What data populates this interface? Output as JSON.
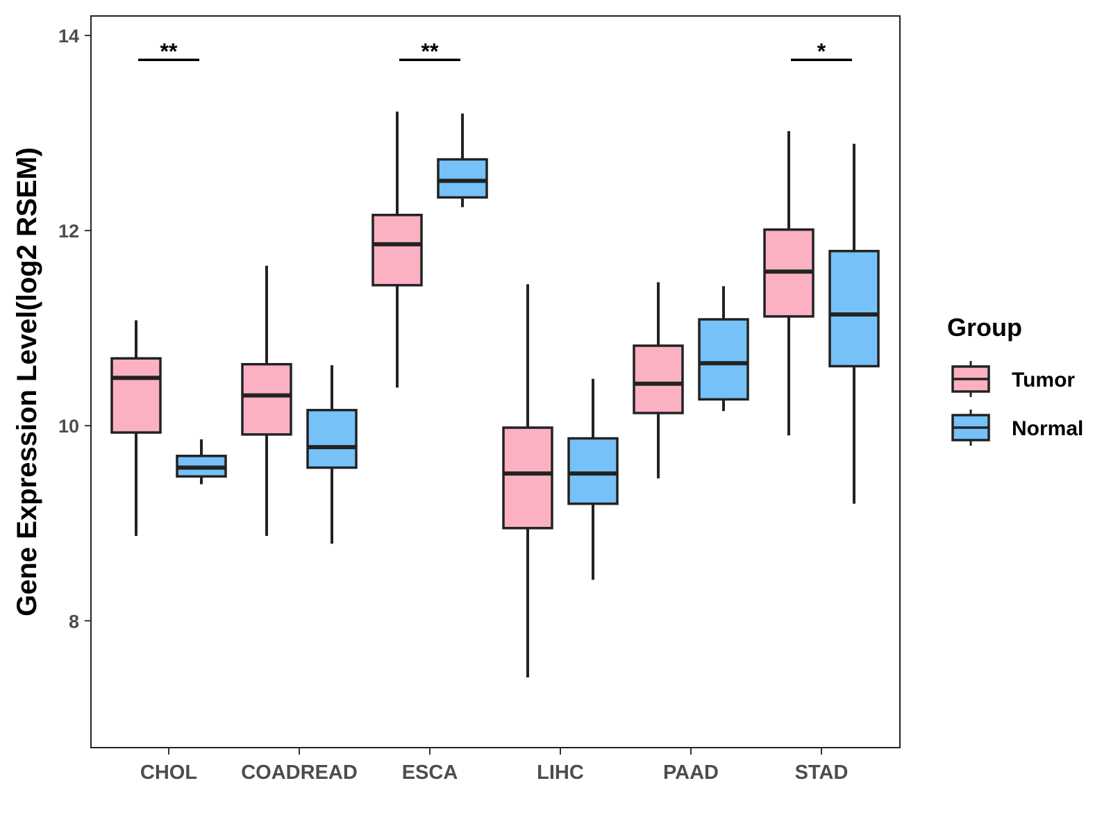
{
  "chart_data": {
    "type": "boxplot",
    "title": "",
    "xlabel": "",
    "ylabel": "Gene Expression Level(log2 RSEM)",
    "ylim": [
      6.7,
      14.2
    ],
    "yticks": [
      8,
      10,
      12,
      14
    ],
    "categories": [
      "CHOL",
      "COADREAD",
      "ESCA",
      "LIHC",
      "PAAD",
      "STAD"
    ],
    "legend": {
      "title": "Group",
      "position": "right",
      "entries": [
        "Tumor",
        "Normal"
      ]
    },
    "series": [
      {
        "name": "Tumor",
        "color": "#FBB1C2",
        "boxes": [
          {
            "whisker_low": 8.87,
            "q1": 9.93,
            "median": 10.49,
            "q3": 10.69,
            "whisker_high": 11.08
          },
          {
            "whisker_low": 8.87,
            "q1": 9.91,
            "median": 10.31,
            "q3": 10.63,
            "whisker_high": 11.64
          },
          {
            "whisker_low": 10.39,
            "q1": 11.44,
            "median": 11.86,
            "q3": 12.16,
            "whisker_high": 13.22
          },
          {
            "whisker_low": 7.42,
            "q1": 8.95,
            "median": 9.51,
            "q3": 9.98,
            "whisker_high": 11.45
          },
          {
            "whisker_low": 9.46,
            "q1": 10.13,
            "median": 10.43,
            "q3": 10.82,
            "whisker_high": 11.47
          },
          {
            "whisker_low": 9.9,
            "q1": 11.12,
            "median": 11.58,
            "q3": 12.01,
            "whisker_high": 13.02
          }
        ]
      },
      {
        "name": "Normal",
        "color": "#76C1F8",
        "boxes": [
          {
            "whisker_low": 9.4,
            "q1": 9.48,
            "median": 9.57,
            "q3": 9.69,
            "whisker_high": 9.86
          },
          {
            "whisker_low": 8.79,
            "q1": 9.57,
            "median": 9.78,
            "q3": 10.16,
            "whisker_high": 10.62
          },
          {
            "whisker_low": 12.24,
            "q1": 12.34,
            "median": 12.51,
            "q3": 12.73,
            "whisker_high": 13.2
          },
          {
            "whisker_low": 8.42,
            "q1": 9.2,
            "median": 9.51,
            "q3": 9.87,
            "whisker_high": 10.48
          },
          {
            "whisker_low": 10.15,
            "q1": 10.27,
            "median": 10.64,
            "q3": 11.09,
            "whisker_high": 11.43
          },
          {
            "whisker_low": 9.2,
            "q1": 10.61,
            "median": 11.14,
            "q3": 11.79,
            "whisker_high": 12.89
          }
        ]
      }
    ],
    "annotations": [
      {
        "category": "CHOL",
        "label": "**",
        "y": 13.75
      },
      {
        "category": "ESCA",
        "label": "**",
        "y": 13.75
      },
      {
        "category": "STAD",
        "label": "*",
        "y": 13.75
      }
    ]
  }
}
